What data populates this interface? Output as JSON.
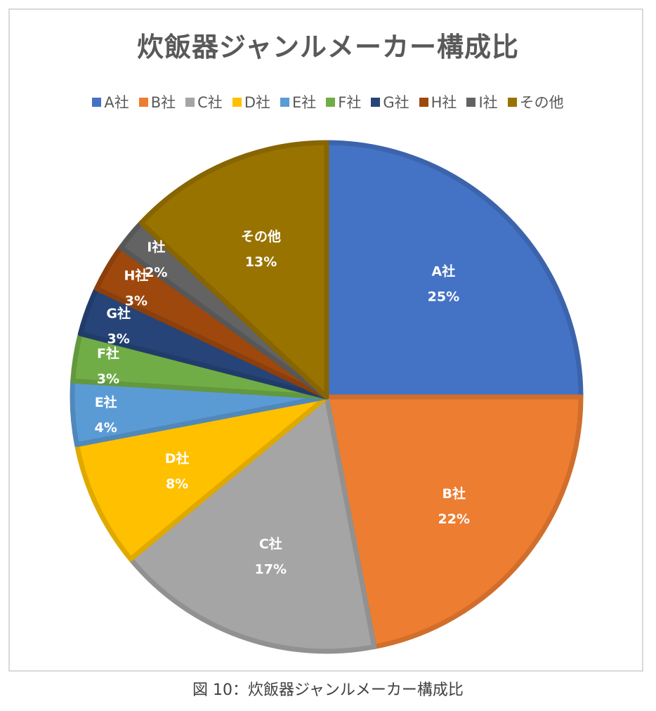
{
  "chart_data": {
    "type": "pie",
    "title": "炊飯器ジャンルメーカー構成比",
    "categories": [
      "A社",
      "B社",
      "C社",
      "D社",
      "E社",
      "F社",
      "G社",
      "H社",
      "I社",
      "その他"
    ],
    "values": [
      25,
      22,
      17,
      8,
      4,
      3,
      3,
      3,
      2,
      13
    ],
    "value_labels": [
      "25%",
      "22%",
      "17%",
      "8%",
      "4%",
      "3%",
      "3%",
      "3%",
      "2%",
      "13%"
    ],
    "colors": [
      "#4472c4",
      "#ed7d31",
      "#a5a5a5",
      "#ffc000",
      "#5b9bd5",
      "#70ad47",
      "#264478",
      "#9e480e",
      "#636363",
      "#997300"
    ],
    "legend_position": "top",
    "start_angle": "12 o'clock, clockwise",
    "unit": "%"
  },
  "header": {
    "title": "炊飯器ジャンルメーカー構成比"
  },
  "legend": {
    "items": [
      {
        "label": "A社",
        "color": "#4472c4"
      },
      {
        "label": "B社",
        "color": "#ed7d31"
      },
      {
        "label": "C社",
        "color": "#a5a5a5"
      },
      {
        "label": "D社",
        "color": "#ffc000"
      },
      {
        "label": "E社",
        "color": "#5b9bd5"
      },
      {
        "label": "F社",
        "color": "#70ad47"
      },
      {
        "label": "G社",
        "color": "#264478"
      },
      {
        "label": "H社",
        "color": "#9e480e"
      },
      {
        "label": "I社",
        "color": "#636363"
      },
      {
        "label": "その他",
        "color": "#997300"
      }
    ]
  },
  "caption": {
    "text": "図 10：炊飯器ジャンルメーカー構成比"
  }
}
